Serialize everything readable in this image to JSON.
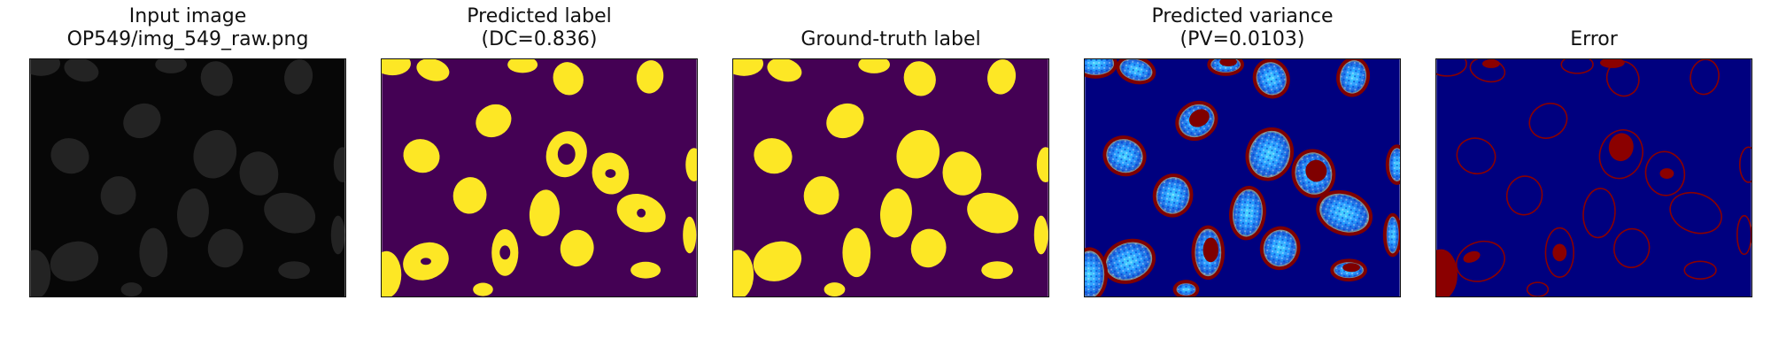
{
  "panels": [
    {
      "id": "input",
      "title": [
        "Input image",
        "OP549/img_549_raw.png"
      ]
    },
    {
      "id": "pred",
      "title": [
        "Predicted label",
        "(DC=0.836)"
      ]
    },
    {
      "id": "gt",
      "title": [
        "Ground-truth label"
      ]
    },
    {
      "id": "var",
      "title": [
        "Predicted variance",
        "(PV=0.0103)"
      ]
    },
    {
      "id": "err",
      "title": [
        "Error"
      ]
    }
  ],
  "colors": {
    "background_dark": "#070707",
    "nucleus_gray": "#3b3b3b",
    "label_background": "#440154",
    "label_foreground": "#fde725",
    "variance_background": "#00007f",
    "variance_high": "#7f0000",
    "variance_mid": "#2b9bff",
    "variance_cyan": "#4fd9ff",
    "error_background": "#00007f",
    "error_foreground": "#8b0000"
  }
}
